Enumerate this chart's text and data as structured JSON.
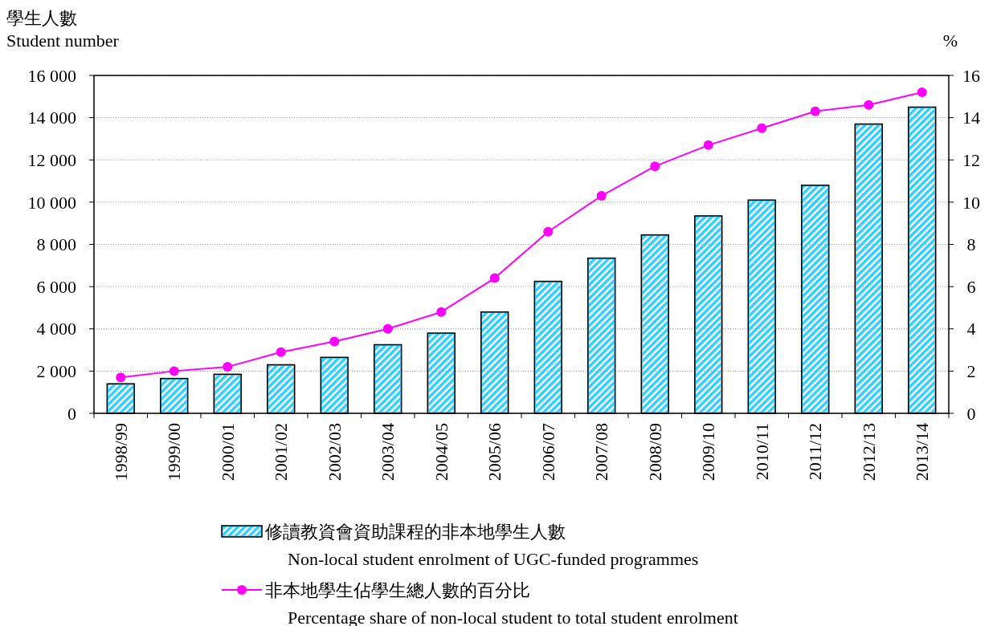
{
  "chart_data": {
    "type": "bar",
    "ylabel": "學生人數\nStudent number",
    "y2label": "%",
    "categories": [
      "1998/99",
      "1999/00",
      "2000/01",
      "2001/02",
      "2002/03",
      "2003/04",
      "2004/05",
      "2005/06",
      "2006/07",
      "2007/08",
      "2008/09",
      "2009/10",
      "2010/11",
      "2011/12",
      "2012/13",
      "2013/14"
    ],
    "series": [
      {
        "name": "修讀教資會資助課程的非本地學生人數\nNon-local student enrolment of UGC-funded programmes",
        "color": "#33ccff",
        "values": [
          1400,
          1650,
          1850,
          2300,
          2650,
          3250,
          3800,
          4800,
          6250,
          7350,
          8450,
          9350,
          10100,
          10800,
          13700,
          14500
        ]
      },
      {
        "name": "非本地學生佔學生總人數的百分比\nPercentage share of non-local student to total student enrolment",
        "type": "line",
        "axis": "y2",
        "color": "#ff00ff",
        "marker": "circle",
        "values": [
          1.7,
          2.0,
          2.2,
          2.9,
          3.4,
          4.0,
          4.8,
          6.4,
          8.6,
          10.3,
          11.7,
          12.7,
          13.5,
          14.3,
          14.6,
          15.2
        ]
      }
    ],
    "ylim": [
      0,
      16000
    ],
    "yticks": [
      0,
      {
        "value": 2000,
        "label": "2 000"
      },
      {
        "value": 4000,
        "label": "4 000"
      },
      {
        "value": 6000,
        "label": "6 000"
      },
      {
        "value": 8000,
        "label": "8 000"
      },
      {
        "value": 10000,
        "label": "10 000"
      },
      {
        "value": 12000,
        "label": "12 000"
      },
      {
        "value": 14000,
        "label": "14 000"
      },
      {
        "value": 16000,
        "label": "16 000"
      }
    ],
    "y2lim": [
      0,
      16
    ],
    "y2ticks": [
      0,
      2,
      4,
      6,
      8,
      10,
      12,
      14,
      16
    ],
    "grid": "y",
    "legend": "bottom"
  }
}
